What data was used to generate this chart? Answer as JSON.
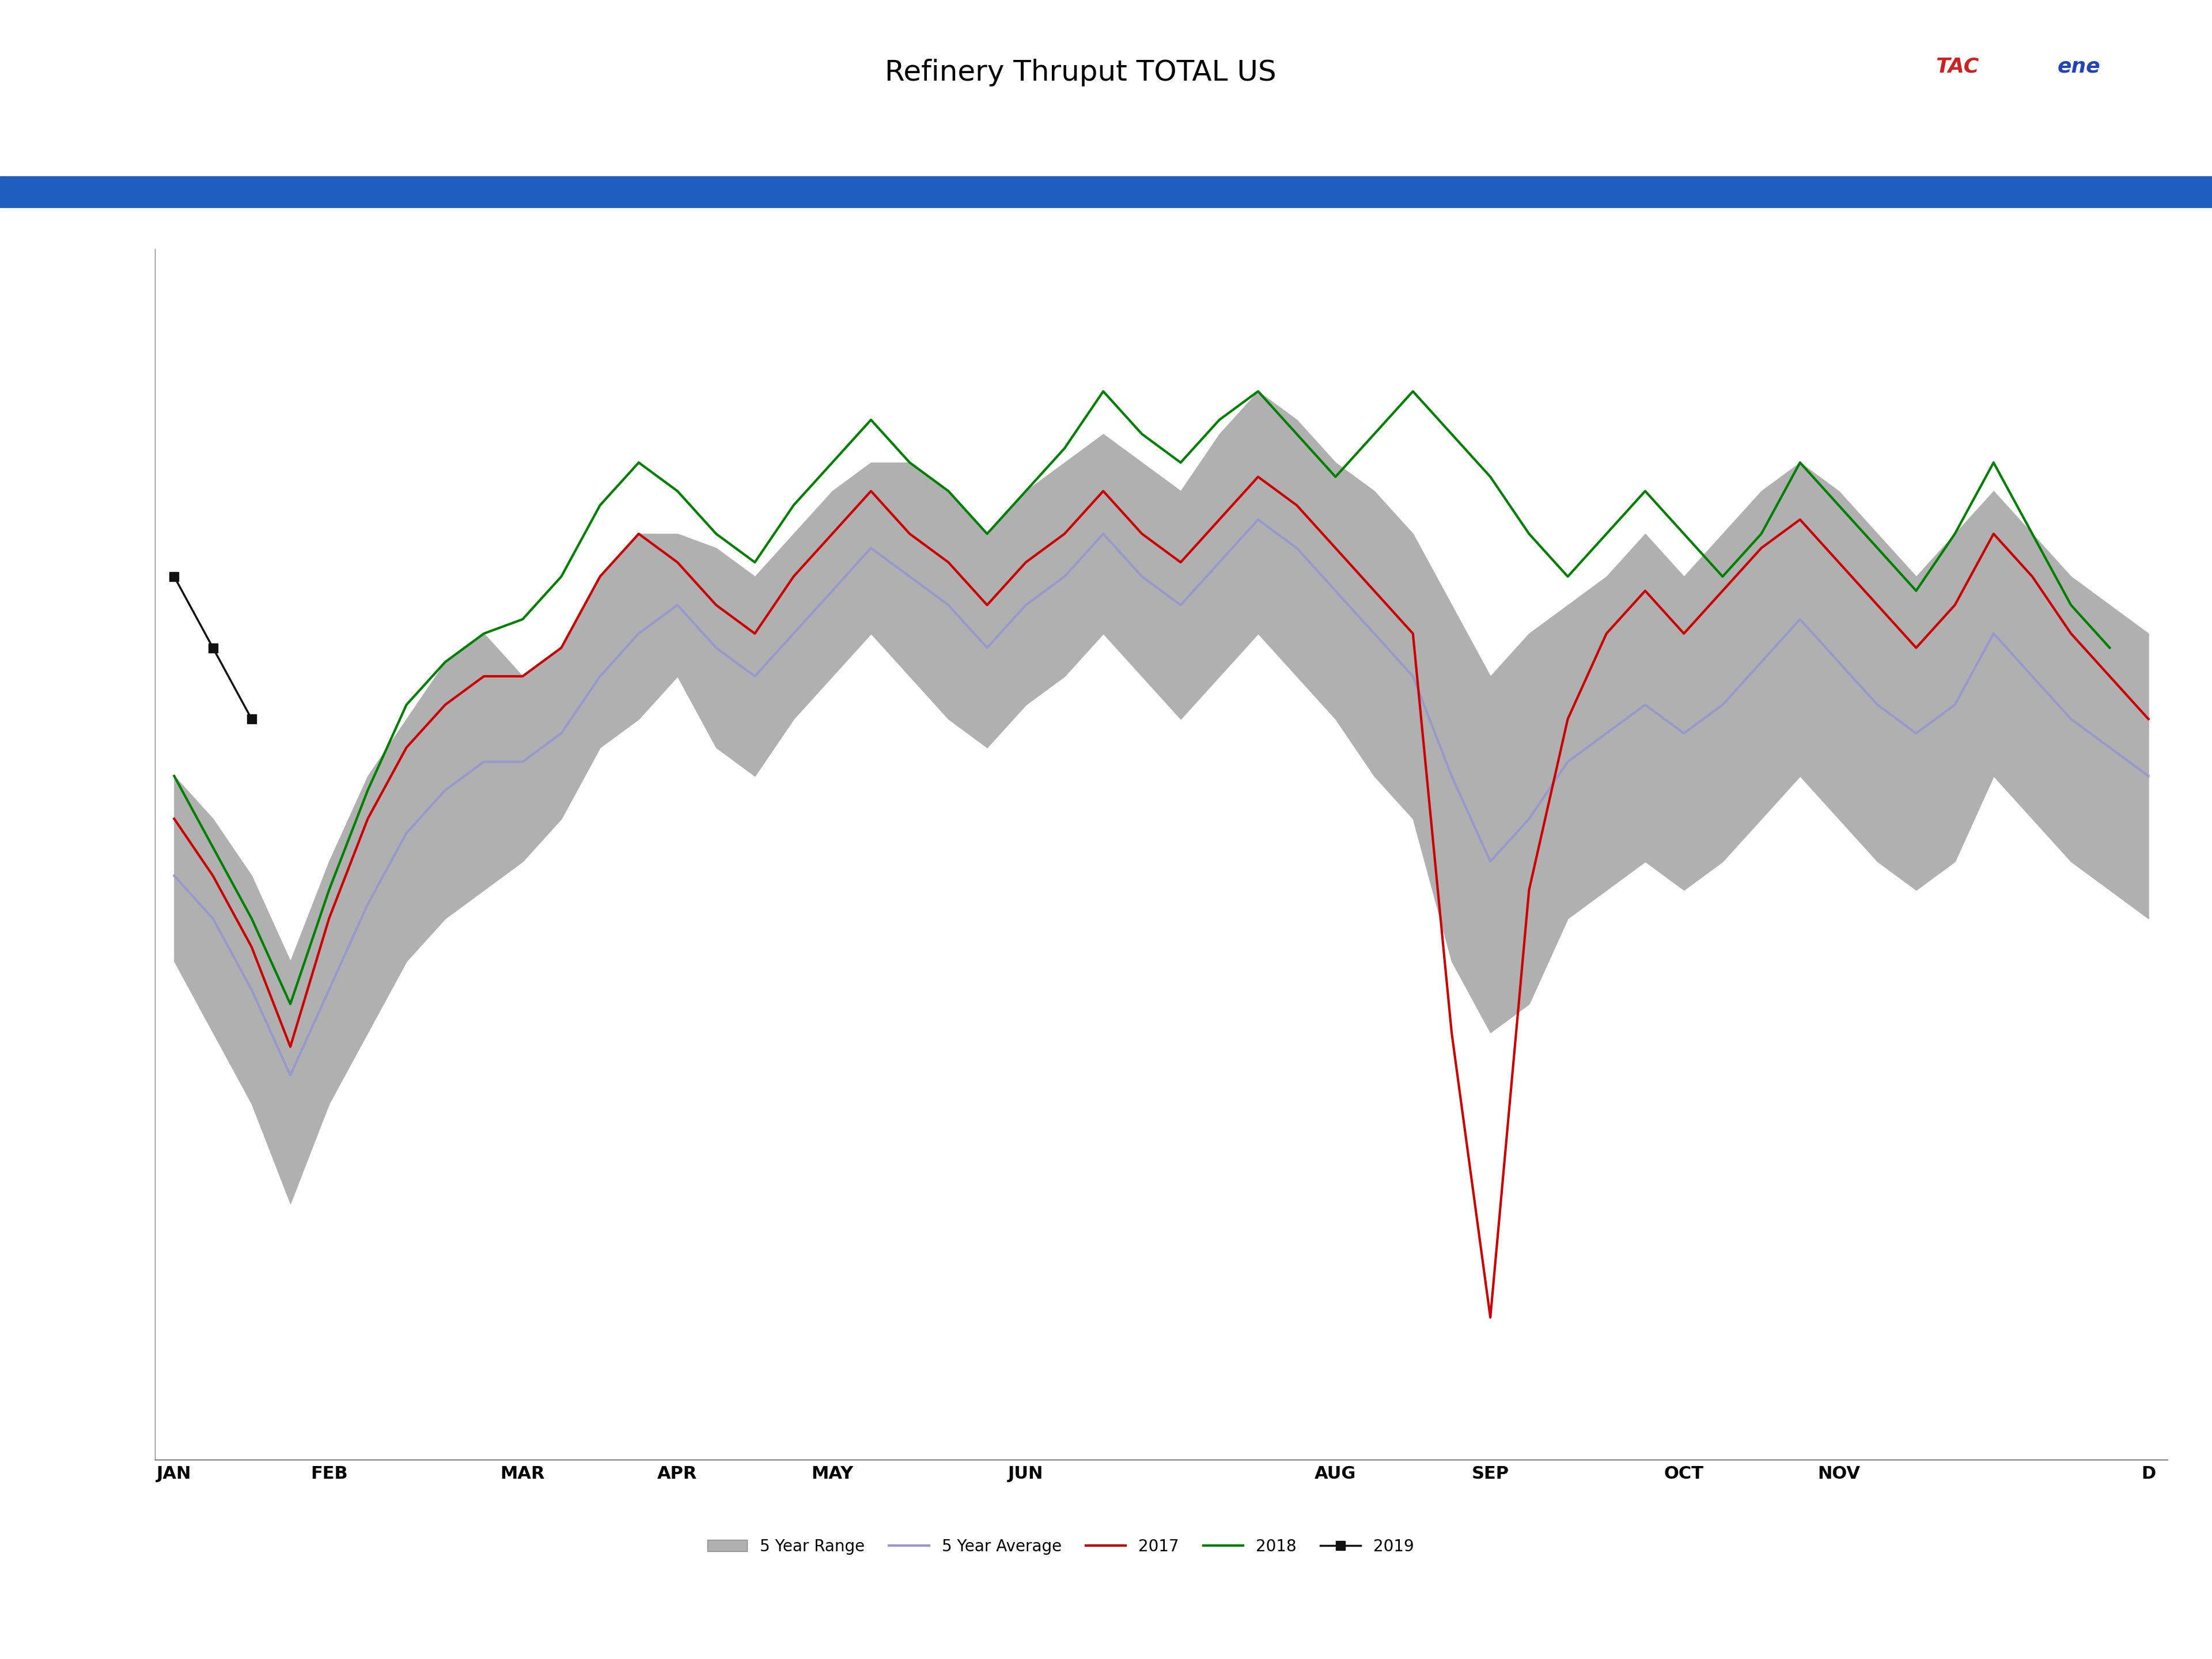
{
  "title": "Refinery Thruput TOTAL US",
  "title_bg_color": "#a8aaad",
  "title_blue_bar_color": "#1f5dbe",
  "title_fontsize": 36,
  "background_color": "#ffffff",
  "plot_bg_color": "#ffffff",
  "months": [
    "JAN",
    "FEB",
    "MAR",
    "APR",
    "MAY",
    "JUN",
    "AUG",
    "SEP",
    "OCT",
    "NOV",
    "D"
  ],
  "x_tick_positions": [
    0,
    4,
    9,
    13,
    17,
    22,
    30,
    34,
    39,
    43,
    51
  ],
  "x_count": 52,
  "five_yr_high": [
    15.8,
    15.5,
    15.1,
    14.5,
    15.2,
    15.8,
    16.2,
    16.6,
    16.8,
    16.5,
    16.7,
    17.2,
    17.5,
    17.5,
    17.4,
    17.2,
    17.5,
    17.8,
    18.0,
    18.0,
    17.8,
    17.5,
    17.8,
    18.0,
    18.2,
    18.0,
    17.8,
    18.2,
    18.5,
    18.3,
    18.0,
    17.8,
    17.5,
    17.0,
    16.5,
    16.8,
    17.0,
    17.2,
    17.5,
    17.2,
    17.5,
    17.8,
    18.0,
    17.8,
    17.5,
    17.2,
    17.5,
    17.8,
    17.5,
    17.2,
    17.0,
    16.8
  ],
  "five_yr_low": [
    14.5,
    14.0,
    13.5,
    12.8,
    13.5,
    14.0,
    14.5,
    14.8,
    15.0,
    15.2,
    15.5,
    16.0,
    16.2,
    16.5,
    16.0,
    15.8,
    16.2,
    16.5,
    16.8,
    16.5,
    16.2,
    16.0,
    16.3,
    16.5,
    16.8,
    16.5,
    16.2,
    16.5,
    16.8,
    16.5,
    16.2,
    15.8,
    15.5,
    14.5,
    14.0,
    14.2,
    14.8,
    15.0,
    15.2,
    15.0,
    15.2,
    15.5,
    15.8,
    15.5,
    15.2,
    15.0,
    15.2,
    15.8,
    15.5,
    15.2,
    15.0,
    14.8
  ],
  "five_yr_avg": [
    15.1,
    14.8,
    14.3,
    13.7,
    14.3,
    14.9,
    15.4,
    15.7,
    15.9,
    15.9,
    16.1,
    16.5,
    16.8,
    17.0,
    16.7,
    16.5,
    16.8,
    17.1,
    17.4,
    17.2,
    17.0,
    16.7,
    17.0,
    17.2,
    17.5,
    17.2,
    17.0,
    17.3,
    17.6,
    17.4,
    17.1,
    16.8,
    16.5,
    15.8,
    15.2,
    15.5,
    15.9,
    16.1,
    16.3,
    16.1,
    16.3,
    16.6,
    16.9,
    16.6,
    16.3,
    16.1,
    16.3,
    16.8,
    16.5,
    16.2,
    16.0,
    15.8
  ],
  "y2017": [
    15.5,
    15.1,
    14.6,
    13.9,
    14.8,
    15.5,
    16.0,
    16.3,
    16.5,
    16.5,
    16.7,
    17.2,
    17.5,
    17.3,
    17.0,
    16.8,
    17.2,
    17.5,
    17.8,
    17.5,
    17.3,
    17.0,
    17.3,
    17.5,
    17.8,
    17.5,
    17.3,
    17.6,
    17.9,
    17.7,
    17.4,
    17.1,
    16.8,
    14.0,
    12.0,
    15.0,
    16.2,
    16.8,
    17.1,
    16.8,
    17.1,
    17.4,
    17.6,
    17.3,
    17.0,
    16.7,
    17.0,
    17.5,
    17.2,
    16.8,
    16.5,
    16.2
  ],
  "y2018": [
    15.8,
    15.3,
    14.8,
    14.2,
    15.0,
    15.7,
    16.3,
    16.6,
    16.8,
    16.9,
    17.2,
    17.7,
    18.0,
    17.8,
    17.5,
    17.3,
    17.7,
    18.0,
    18.3,
    18.0,
    17.8,
    17.5,
    17.8,
    18.1,
    18.5,
    18.2,
    18.0,
    18.3,
    18.5,
    18.2,
    17.9,
    18.2,
    18.5,
    18.2,
    17.9,
    17.5,
    17.2,
    17.5,
    17.8,
    17.5,
    17.2,
    17.5,
    18.0,
    17.7,
    17.4,
    17.1,
    17.5,
    18.0,
    17.5,
    17.0,
    16.7,
    null
  ],
  "y2019": [
    17.2,
    16.7,
    16.2,
    null,
    null,
    null,
    null,
    null,
    null,
    null,
    null,
    null,
    null,
    null,
    null,
    null,
    null,
    null,
    null,
    null,
    null,
    null,
    null,
    null,
    null,
    null,
    null,
    null,
    null,
    null,
    null,
    null,
    null,
    null,
    null,
    null,
    null,
    null,
    null,
    null,
    null,
    null,
    null,
    null,
    null,
    null,
    null,
    null,
    null,
    null,
    null,
    null
  ],
  "range_color": "#b0b0b0",
  "range_alpha": 1.0,
  "avg_color": "#9999cc",
  "avg_linewidth": 3.0,
  "color_2017": "#cc0000",
  "color_2018": "#008000",
  "color_2019": "#111111",
  "linewidth_2017": 3.0,
  "linewidth_2018": 3.0,
  "linewidth_2019": 2.5,
  "marker_2019": "s",
  "markersize_2019": 12,
  "ylim": [
    11.0,
    19.5
  ],
  "legend_labels": [
    "5 Year Range",
    "5 Year Average",
    "2017",
    "2018",
    "2019"
  ],
  "legend_colors": [
    "#b0b0b0",
    "#9999cc",
    "#cc0000",
    "#008000",
    "#111111"
  ]
}
